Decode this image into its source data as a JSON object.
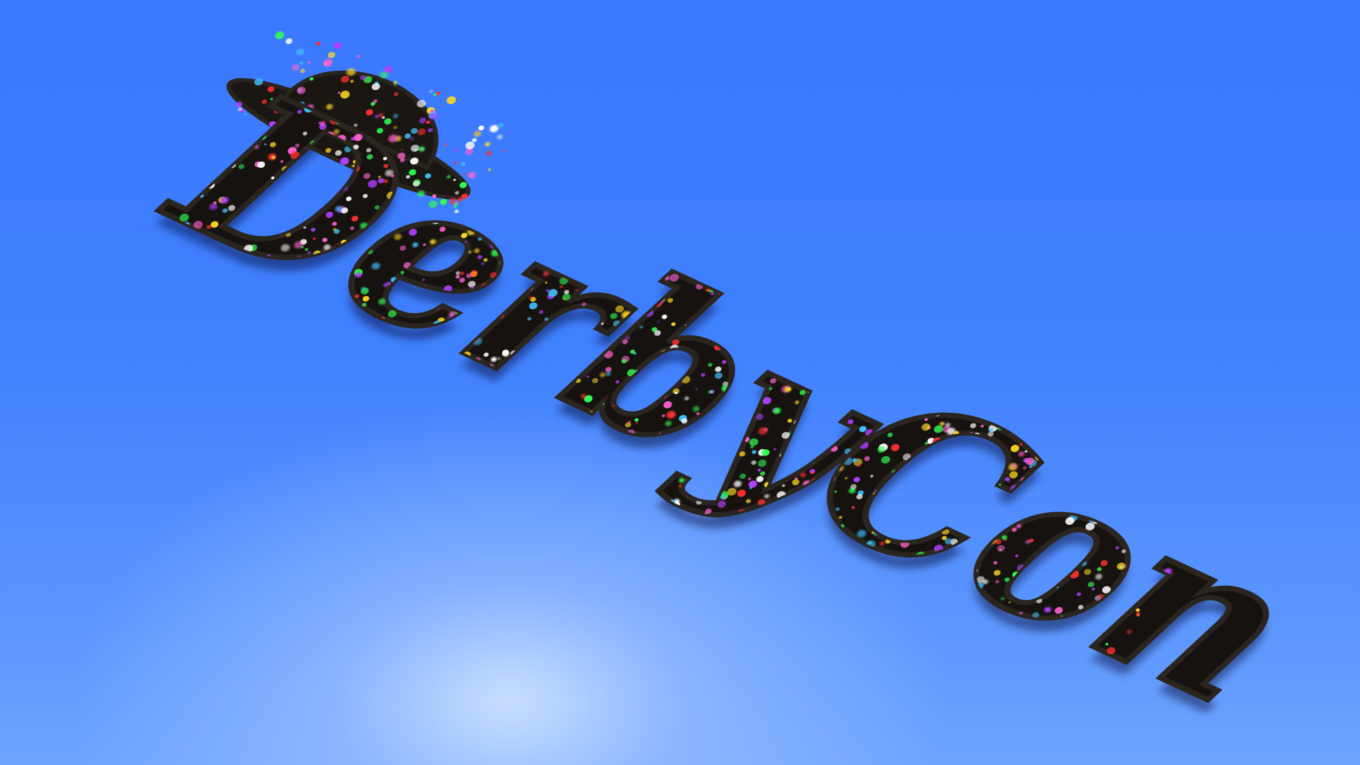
{
  "scene": {
    "logo_text": "DerbyCon",
    "colors": {
      "sky_top": "#3a78ff",
      "sky_bottom": "#6ea4ff",
      "glow": "#cfe0ff",
      "letter_fill": "#15120f",
      "sparkle_palette": [
        "#ffffff",
        "#ff3030",
        "#30ff50",
        "#ffd820",
        "#b040ff",
        "#40c0ff",
        "#ff60d0"
      ]
    },
    "icons": [
      "bowler-hat-icon"
    ]
  }
}
